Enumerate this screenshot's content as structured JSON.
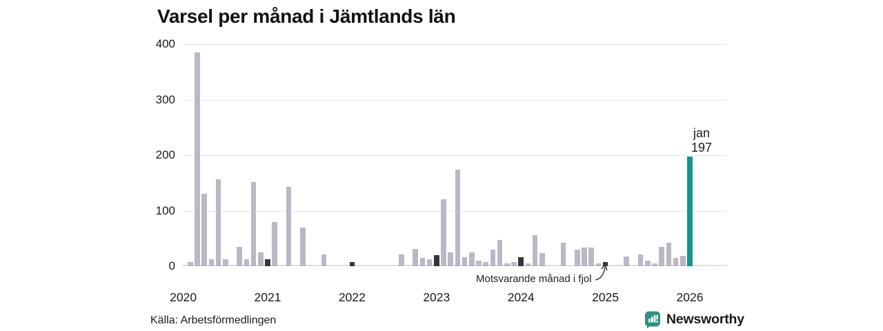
{
  "title": "Varsel per månad i Jämtlands län",
  "source": "Källa: Arbetsförmedlingen",
  "branding": {
    "name": "Newsworthy"
  },
  "annotation": {
    "text": "Motsvarande månad i fjol"
  },
  "current_label": {
    "month": "jan",
    "value": "197"
  },
  "colors": {
    "bar_normal": "#bab8c4",
    "bar_reference": "#35353a",
    "bar_current": "#179689",
    "brand_teal": "#2e937f",
    "grid": "#e7e7e7",
    "axis_text": "#1a1a1a"
  },
  "chart_data": {
    "type": "bar",
    "title": "Varsel per månad i Jämtlands län",
    "xlabel": "",
    "ylabel": "",
    "ylim": [
      0,
      400
    ],
    "yticks": [
      0,
      100,
      200,
      300,
      400
    ],
    "xticks": [
      "2020",
      "2021",
      "2022",
      "2023",
      "2024",
      "2025",
      "2026"
    ],
    "grid": "horizontal",
    "legend": "none",
    "kinds_legend": {
      "normal": "ordinary month",
      "ref": "january of earlier years (dark, 'Motsvarande månad i fjol')",
      "current": "latest month jan 2026 (teal, labeled 197)"
    },
    "points": [
      [
        "2020-01",
        0,
        "ref"
      ],
      [
        "2020-02",
        7,
        "normal"
      ],
      [
        "2020-03",
        385,
        "normal"
      ],
      [
        "2020-04",
        130,
        "normal"
      ],
      [
        "2020-05",
        12,
        "normal"
      ],
      [
        "2020-06",
        157,
        "normal"
      ],
      [
        "2020-07",
        13,
        "normal"
      ],
      [
        "2020-08",
        0,
        "normal"
      ],
      [
        "2020-09",
        35,
        "normal"
      ],
      [
        "2020-10",
        13,
        "normal"
      ],
      [
        "2020-11",
        152,
        "normal"
      ],
      [
        "2020-12",
        25,
        "normal"
      ],
      [
        "2021-01",
        13,
        "ref"
      ],
      [
        "2021-02",
        80,
        "normal"
      ],
      [
        "2021-03",
        0,
        "normal"
      ],
      [
        "2021-04",
        143,
        "normal"
      ],
      [
        "2021-05",
        0,
        "normal"
      ],
      [
        "2021-06",
        70,
        "normal"
      ],
      [
        "2021-07",
        0,
        "normal"
      ],
      [
        "2021-08",
        0,
        "normal"
      ],
      [
        "2021-09",
        21,
        "normal"
      ],
      [
        "2021-10",
        0,
        "normal"
      ],
      [
        "2021-11",
        0,
        "normal"
      ],
      [
        "2021-12",
        0,
        "normal"
      ],
      [
        "2022-01",
        7,
        "ref"
      ],
      [
        "2022-02",
        0,
        "normal"
      ],
      [
        "2022-03",
        0,
        "normal"
      ],
      [
        "2022-04",
        0,
        "normal"
      ],
      [
        "2022-05",
        0,
        "normal"
      ],
      [
        "2022-06",
        0,
        "normal"
      ],
      [
        "2022-07",
        0,
        "normal"
      ],
      [
        "2022-08",
        21,
        "normal"
      ],
      [
        "2022-09",
        0,
        "normal"
      ],
      [
        "2022-10",
        31,
        "normal"
      ],
      [
        "2022-11",
        15,
        "normal"
      ],
      [
        "2022-12",
        13,
        "normal"
      ],
      [
        "2023-01",
        20,
        "ref"
      ],
      [
        "2023-02",
        120,
        "normal"
      ],
      [
        "2023-03",
        25,
        "normal"
      ],
      [
        "2023-04",
        174,
        "normal"
      ],
      [
        "2023-05",
        16,
        "normal"
      ],
      [
        "2023-06",
        25,
        "normal"
      ],
      [
        "2023-07",
        10,
        "normal"
      ],
      [
        "2023-08",
        8,
        "normal"
      ],
      [
        "2023-09",
        30,
        "normal"
      ],
      [
        "2023-10",
        47,
        "normal"
      ],
      [
        "2023-11",
        5,
        "normal"
      ],
      [
        "2023-12",
        7,
        "normal"
      ],
      [
        "2024-01",
        16,
        "ref"
      ],
      [
        "2024-02",
        5,
        "normal"
      ],
      [
        "2024-03",
        56,
        "normal"
      ],
      [
        "2024-04",
        24,
        "normal"
      ],
      [
        "2024-05",
        0,
        "normal"
      ],
      [
        "2024-06",
        0,
        "normal"
      ],
      [
        "2024-07",
        42,
        "normal"
      ],
      [
        "2024-08",
        0,
        "normal"
      ],
      [
        "2024-09",
        30,
        "normal"
      ],
      [
        "2024-10",
        34,
        "normal"
      ],
      [
        "2024-11",
        34,
        "normal"
      ],
      [
        "2024-12",
        5,
        "normal"
      ],
      [
        "2025-01",
        8,
        "ref"
      ],
      [
        "2025-02",
        0,
        "normal"
      ],
      [
        "2025-03",
        0,
        "normal"
      ],
      [
        "2025-04",
        18,
        "normal"
      ],
      [
        "2025-05",
        0,
        "normal"
      ],
      [
        "2025-06",
        21,
        "normal"
      ],
      [
        "2025-07",
        10,
        "normal"
      ],
      [
        "2025-08",
        5,
        "normal"
      ],
      [
        "2025-09",
        35,
        "normal"
      ],
      [
        "2025-10",
        42,
        "normal"
      ],
      [
        "2025-11",
        15,
        "normal"
      ],
      [
        "2025-12",
        19,
        "normal"
      ],
      [
        "2026-01",
        197,
        "current"
      ]
    ],
    "annotations": [
      {
        "text": "Motsvarande månad i fjol",
        "target_month": "2025-01"
      },
      {
        "text": "jan 197",
        "target_month": "2026-01"
      }
    ]
  }
}
